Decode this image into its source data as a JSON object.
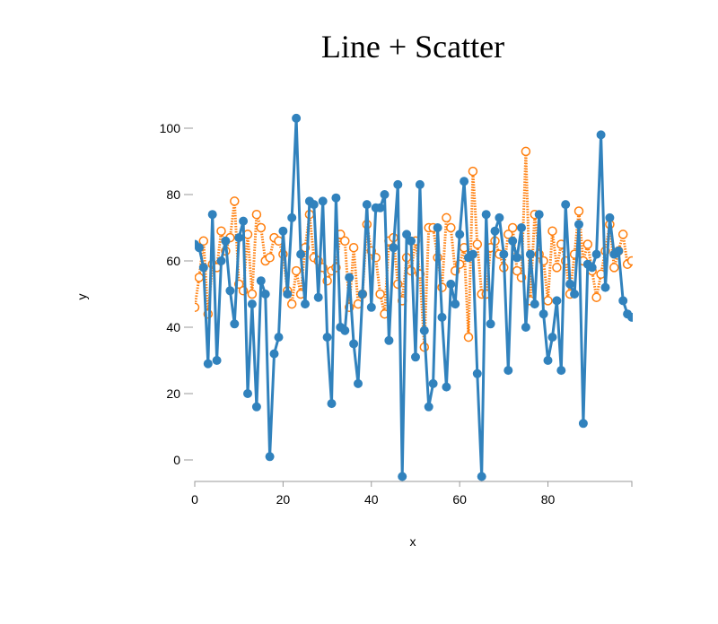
{
  "chart_data": {
    "type": "line",
    "title": "Line + Scatter",
    "xlabel": "x",
    "ylabel": "y",
    "xlim": [
      0,
      99
    ],
    "ylim": [
      -5,
      105
    ],
    "x_ticks": [
      0,
      20,
      40,
      60,
      80
    ],
    "y_ticks": [
      0,
      20,
      40,
      60,
      80,
      100
    ],
    "grid": false,
    "legend": "none",
    "series": [
      {
        "style": "solid line with filled circle markers",
        "color": "#3182bd",
        "x": [
          0,
          1,
          2,
          3,
          4,
          5,
          6,
          7,
          8,
          9,
          10,
          11,
          12,
          13,
          14,
          15,
          16,
          17,
          18,
          19,
          20,
          21,
          22,
          23,
          24,
          25,
          26,
          27,
          28,
          29,
          30,
          31,
          32,
          33,
          34,
          35,
          36,
          37,
          38,
          39,
          40,
          41,
          42,
          43,
          44,
          45,
          46,
          47,
          48,
          49,
          50,
          51,
          52,
          53,
          54,
          55,
          56,
          57,
          58,
          59,
          60,
          61,
          62,
          63,
          64,
          65,
          66,
          67,
          68,
          69,
          70,
          71,
          72,
          73,
          74,
          75,
          76,
          77,
          78,
          79,
          80,
          81,
          82,
          83,
          84,
          85,
          86,
          87,
          88,
          89,
          90,
          91,
          92,
          93,
          94,
          95,
          96,
          97,
          98,
          99
        ],
        "values": [
          65,
          64,
          58,
          29,
          74,
          30,
          60,
          66,
          51,
          41,
          67,
          72,
          20,
          47,
          16,
          54,
          50,
          1,
          32,
          37,
          69,
          50,
          73,
          103,
          62,
          47,
          78,
          77,
          49,
          78,
          37,
          17,
          79,
          40,
          39,
          55,
          35,
          23,
          50,
          77,
          46,
          76,
          76,
          80,
          36,
          64,
          83,
          -5,
          68,
          66,
          31,
          83,
          39,
          16,
          23,
          70,
          43,
          22,
          53,
          47,
          68,
          84,
          61,
          62,
          26,
          -5,
          74,
          41,
          69,
          73,
          62,
          27,
          66,
          61,
          70,
          40,
          62,
          47,
          74,
          44,
          30,
          37,
          48,
          27,
          77,
          53,
          50,
          71,
          11,
          59,
          58,
          62,
          98,
          52,
          73,
          62,
          63,
          48,
          44,
          43
        ]
      },
      {
        "style": "dotted line with open circle markers",
        "color": "#ff7f0e",
        "x": [
          0,
          1,
          2,
          3,
          4,
          5,
          6,
          7,
          8,
          9,
          10,
          11,
          12,
          13,
          14,
          15,
          16,
          17,
          18,
          19,
          20,
          21,
          22,
          23,
          24,
          25,
          26,
          27,
          28,
          29,
          30,
          31,
          32,
          33,
          34,
          35,
          36,
          37,
          38,
          39,
          40,
          41,
          42,
          43,
          44,
          45,
          46,
          47,
          48,
          49,
          50,
          51,
          52,
          53,
          54,
          55,
          56,
          57,
          58,
          59,
          60,
          61,
          62,
          63,
          64,
          65,
          66,
          67,
          68,
          69,
          70,
          71,
          72,
          73,
          74,
          75,
          76,
          77,
          78,
          79,
          80,
          81,
          82,
          83,
          84,
          85,
          86,
          87,
          88,
          89,
          90,
          91,
          92,
          93,
          94,
          95,
          96,
          97,
          98,
          99
        ],
        "values": [
          46,
          55,
          66,
          44,
          59,
          58,
          69,
          63,
          67,
          78,
          53,
          51,
          68,
          50,
          74,
          70,
          60,
          61,
          67,
          66,
          62,
          51,
          47,
          57,
          50,
          64,
          74,
          61,
          60,
          58,
          54,
          57,
          58,
          68,
          66,
          46,
          64,
          47,
          50,
          71,
          63,
          61,
          50,
          44,
          66,
          67,
          53,
          48,
          61,
          57,
          66,
          56,
          34,
          70,
          70,
          61,
          52,
          73,
          70,
          57,
          59,
          64,
          37,
          87,
          65,
          50,
          50,
          64,
          66,
          62,
          58,
          68,
          70,
          57,
          55,
          93,
          48,
          74,
          62,
          60,
          48,
          69,
          58,
          65,
          60,
          50,
          62,
          75,
          60,
          65,
          57,
          49,
          56,
          63,
          71,
          58,
          63,
          68,
          59,
          60
        ]
      }
    ]
  }
}
